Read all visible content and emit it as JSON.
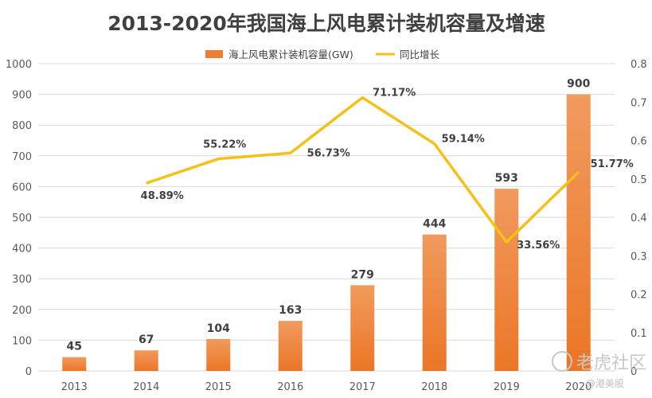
{
  "chart_data": {
    "type": "bar+line",
    "title": "2013-2020年我国海上风电累计装机容量及增速",
    "categories": [
      "2013",
      "2014",
      "2015",
      "2016",
      "2017",
      "2018",
      "2019",
      "2020"
    ],
    "bar_series": {
      "name": "海上风电累计装机容量(GW)",
      "values": [
        45,
        67,
        104,
        163,
        279,
        444,
        593,
        900
      ],
      "labels": [
        "45",
        "67",
        "104",
        "163",
        "279",
        "444",
        "593",
        "900"
      ],
      "color": "#ED7D31"
    },
    "line_series": {
      "name": "同比增长",
      "x": [
        "2014",
        "2015",
        "2016",
        "2017",
        "2018",
        "2019",
        "2020"
      ],
      "values": [
        0.4889,
        0.5522,
        0.5673,
        0.7117,
        0.5914,
        0.3356,
        0.5177
      ],
      "labels": [
        "48.89%",
        "55.22%",
        "56.73%",
        "71.17%",
        "59.14%",
        "33.56%",
        "51.77%"
      ],
      "color": "#F5C018"
    },
    "y_left": {
      "ylim": [
        0,
        1000
      ],
      "ticks": [
        "0",
        "100",
        "200",
        "300",
        "400",
        "500",
        "600",
        "700",
        "800",
        "900",
        "1000"
      ]
    },
    "y_right": {
      "ylim": [
        0,
        0.8
      ],
      "ticks": [
        "0",
        "0.1",
        "0.2",
        "0.3",
        "0.4",
        "0.5",
        "0.6",
        "0.7",
        "0.8"
      ]
    },
    "grid": true,
    "legend_position": "top-center"
  },
  "watermark": {
    "text": "老虎社区",
    "subtext": "@港美股"
  }
}
